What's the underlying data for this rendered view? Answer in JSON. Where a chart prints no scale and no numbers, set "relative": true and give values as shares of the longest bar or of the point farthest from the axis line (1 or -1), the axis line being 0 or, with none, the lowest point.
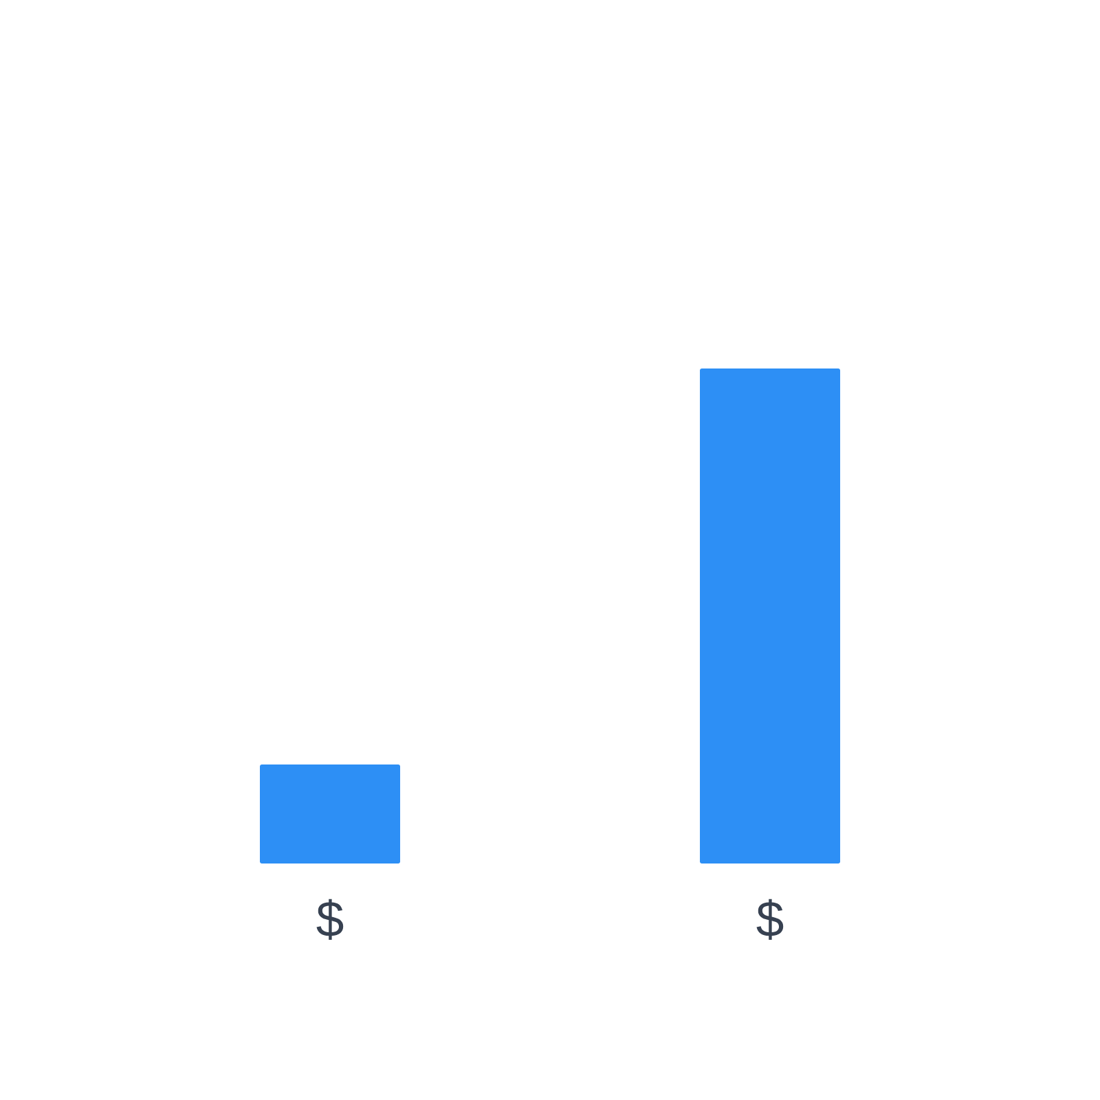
{
  "chart_data": {
    "type": "bar",
    "relative": true,
    "categories": [
      "$",
      "$"
    ],
    "values": [
      0.2,
      1
    ],
    "color": "#2d8ff5"
  }
}
